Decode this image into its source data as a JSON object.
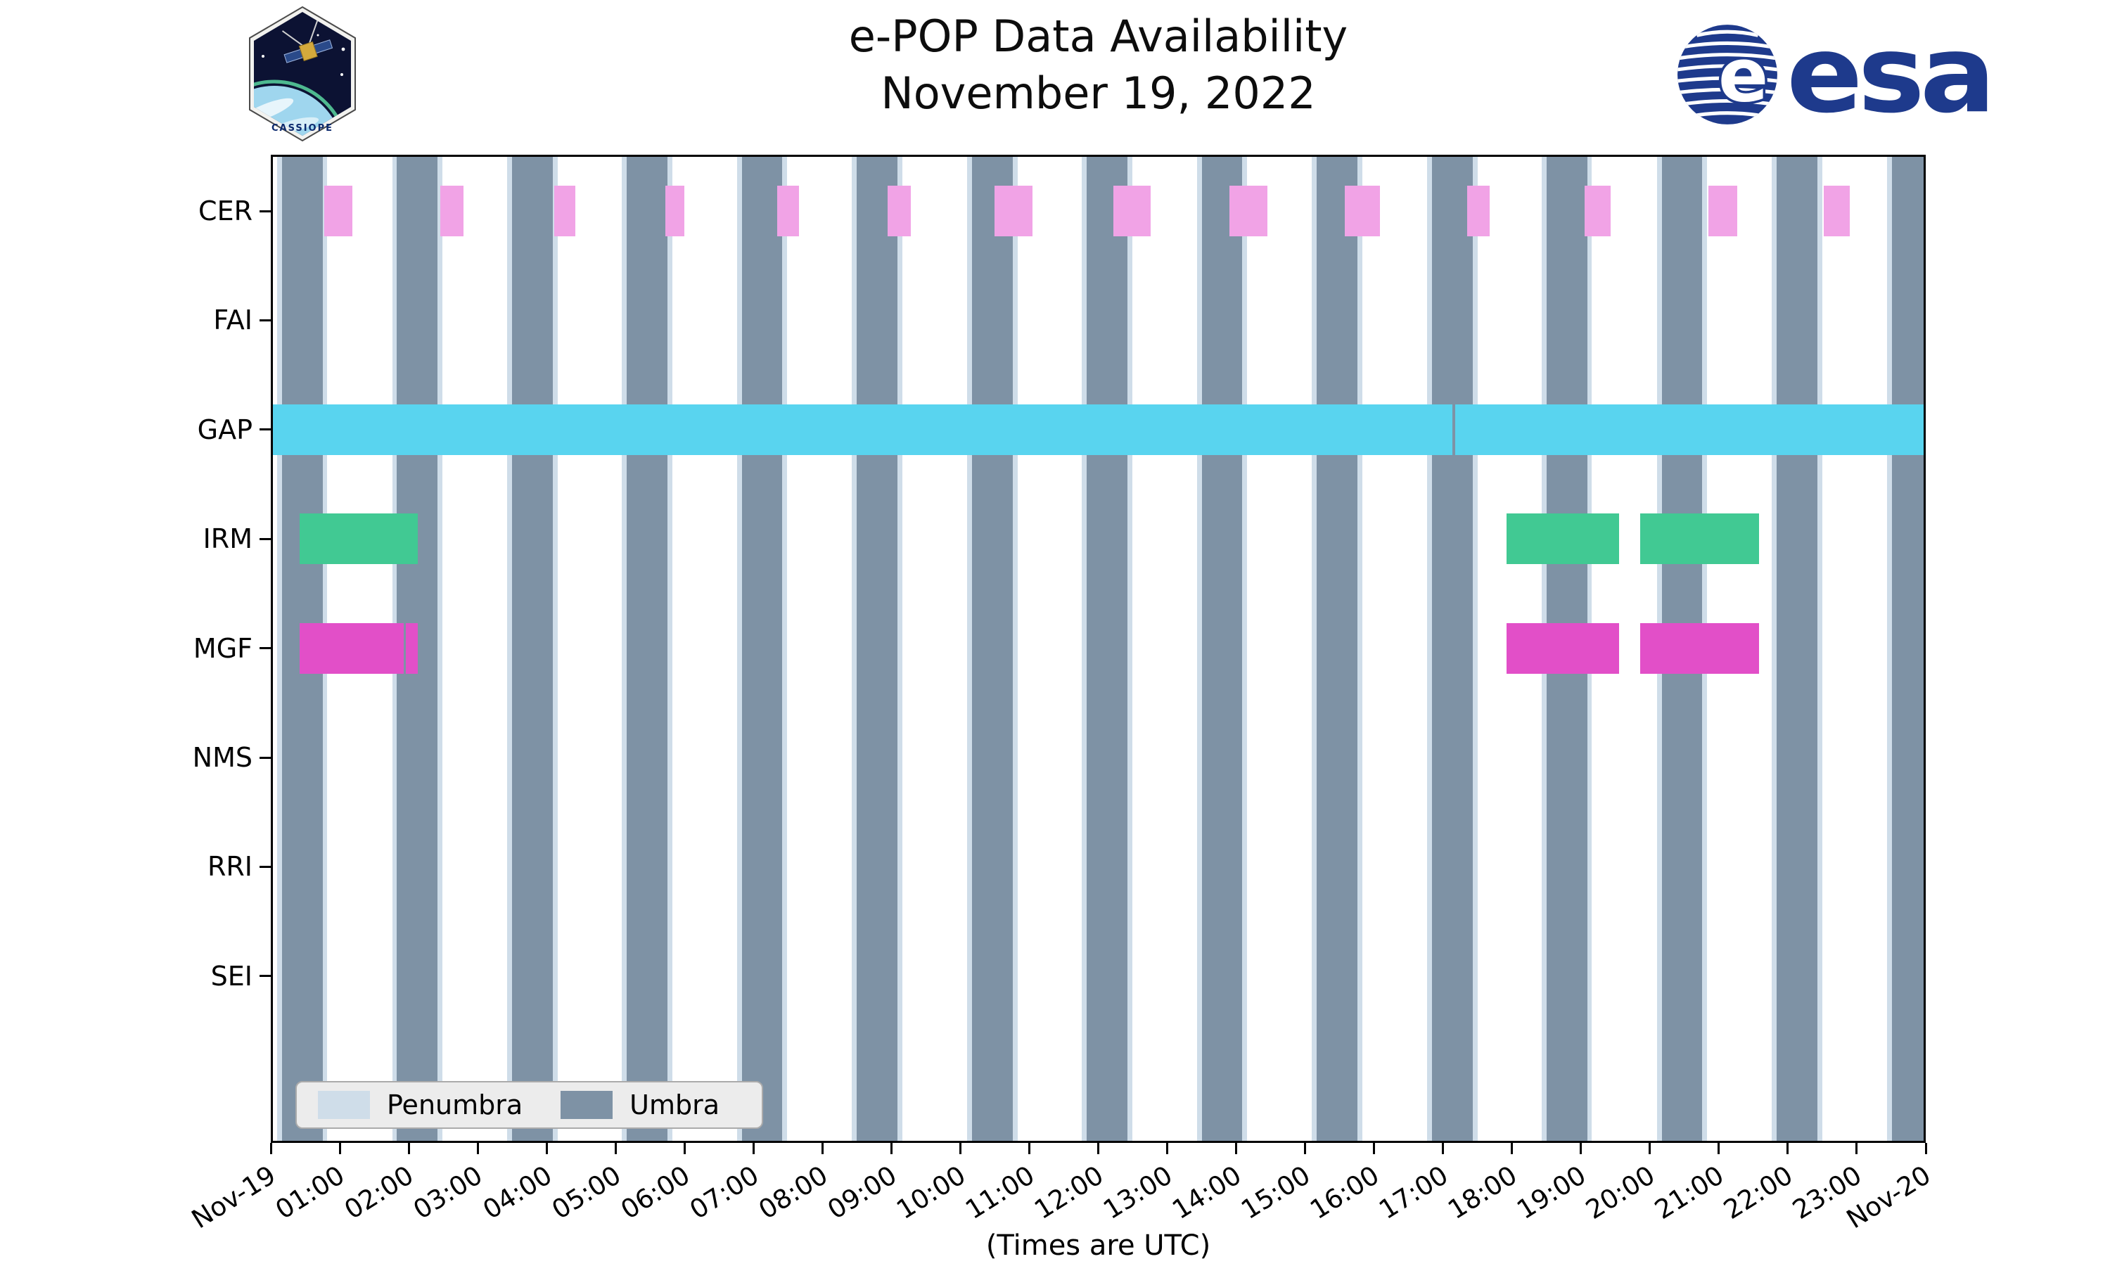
{
  "branding": {
    "cassiope_text": "CASSIOPE",
    "esa_wordmark": "esa"
  },
  "chart_data": {
    "type": "gantt-timeline",
    "title": "e-POP Data Availability",
    "subtitle": "November 19, 2022",
    "xlabel": "(Times are UTC)",
    "x_axis": {
      "range_hours": [
        0,
        24
      ],
      "tick_interval_hours": 1,
      "tick_labels": [
        "Nov-19",
        "01:00",
        "02:00",
        "03:00",
        "04:00",
        "05:00",
        "06:00",
        "07:00",
        "08:00",
        "09:00",
        "10:00",
        "11:00",
        "12:00",
        "13:00",
        "14:00",
        "15:00",
        "16:00",
        "17:00",
        "18:00",
        "19:00",
        "20:00",
        "21:00",
        "22:00",
        "23:00",
        "Nov-20"
      ]
    },
    "rows": [
      "CER",
      "FAI",
      "GAP",
      "IRM",
      "MGF",
      "NMS",
      "RRI",
      "SEI"
    ],
    "series": [
      {
        "row": "CER",
        "color": "#f1a3e6",
        "intervals": [
          [
            0.78,
            1.18
          ],
          [
            2.46,
            2.79
          ],
          [
            4.11,
            4.42
          ],
          [
            5.72,
            6.0
          ],
          [
            7.34,
            7.66
          ],
          [
            8.95,
            9.28
          ],
          [
            10.5,
            11.05
          ],
          [
            12.22,
            12.76
          ],
          [
            13.9,
            14.45
          ],
          [
            15.58,
            16.08
          ],
          [
            17.35,
            17.68
          ],
          [
            19.05,
            19.43
          ],
          [
            20.85,
            21.27
          ],
          [
            22.52,
            22.9
          ]
        ]
      },
      {
        "row": "FAI",
        "color": "#f1a3e6",
        "intervals": []
      },
      {
        "row": "GAP",
        "color": "#59d4ef",
        "intervals": [
          [
            0.0,
            17.14
          ],
          [
            17.18,
            24.0
          ]
        ]
      },
      {
        "row": "IRM",
        "color": "#41c993",
        "intervals": [
          [
            0.42,
            2.13
          ],
          [
            17.92,
            19.55
          ],
          [
            19.86,
            21.58
          ]
        ]
      },
      {
        "row": "MGF",
        "color": "#e24fc8",
        "intervals": [
          [
            0.42,
            1.93
          ],
          [
            1.96,
            2.13
          ],
          [
            17.92,
            19.55
          ],
          [
            19.86,
            21.58
          ]
        ]
      },
      {
        "row": "NMS",
        "color": "#e24fc8",
        "intervals": []
      },
      {
        "row": "RRI",
        "color": "#e24fc8",
        "intervals": []
      },
      {
        "row": "SEI",
        "color": "#e24fc8",
        "intervals": []
      }
    ],
    "shading": {
      "umbra_color": "#7e92a5",
      "penumbra_color": "#cfdde9",
      "penumbra_margin_hours": 0.07,
      "umbra_intervals": [
        [
          0.16,
          0.75
        ],
        [
          1.83,
          2.42
        ],
        [
          3.5,
          4.09
        ],
        [
          5.16,
          5.75
        ],
        [
          6.83,
          7.42
        ],
        [
          8.5,
          9.09
        ],
        [
          10.17,
          10.76
        ],
        [
          11.83,
          12.42
        ],
        [
          13.5,
          14.09
        ],
        [
          15.17,
          15.76
        ],
        [
          16.84,
          17.43
        ],
        [
          18.5,
          19.09
        ],
        [
          20.17,
          20.76
        ],
        [
          21.84,
          22.43
        ],
        [
          23.51,
          24.1
        ]
      ]
    },
    "legend": [
      {
        "label": "Penumbra",
        "color": "#cfdde9"
      },
      {
        "label": "Umbra",
        "color": "#7e92a5"
      }
    ]
  }
}
